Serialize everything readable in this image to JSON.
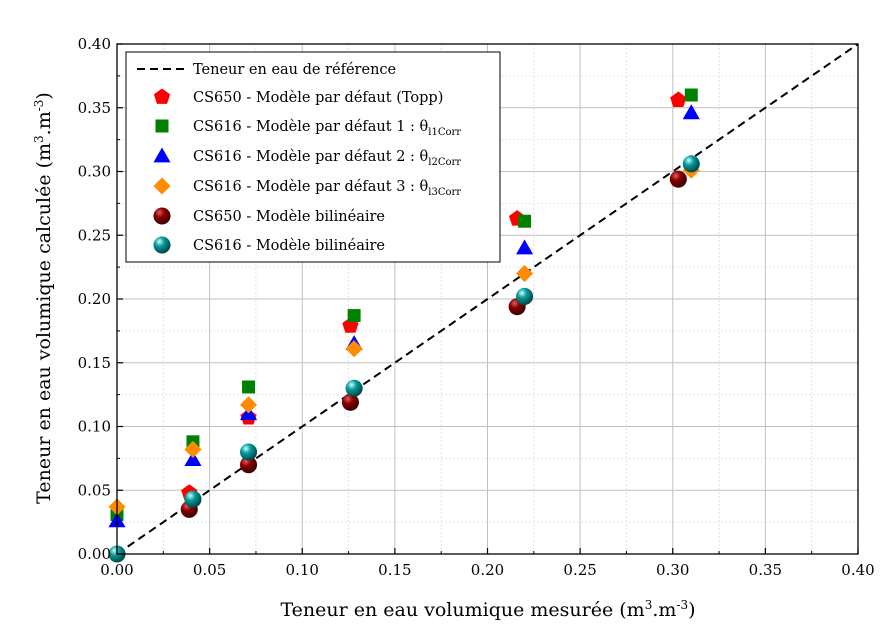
{
  "chart_data": {
    "type": "scatter",
    "title": "",
    "xlabel": "Teneur en eau volumique mesurée (m³.m⁻³)",
    "ylabel": "Teneur en eau volumique calculée (m³.m⁻³)",
    "xlim": [
      0,
      0.4
    ],
    "ylim": [
      0,
      0.4
    ],
    "x_ticks": [
      "0.00",
      "0.05",
      "0.10",
      "0.15",
      "0.20",
      "0.25",
      "0.30",
      "0.35",
      "0.40"
    ],
    "y_ticks": [
      "0.00",
      "0.05",
      "0.10",
      "0.15",
      "0.20",
      "0.25",
      "0.30",
      "0.35",
      "0.40"
    ],
    "grid": true,
    "legend_position": "top-left",
    "reference_line": {
      "name": "Teneur en eau de référence",
      "points": [
        [
          0,
          0
        ],
        [
          0.4,
          0.4
        ]
      ],
      "color": "#000000",
      "style": "dashed"
    },
    "series": [
      {
        "name": "CS650 - Modèle par défaut (Topp)",
        "marker": "pentagon",
        "color": "#ff0000",
        "points": [
          [
            0.039,
            0.048
          ],
          [
            0.071,
            0.107
          ],
          [
            0.126,
            0.179
          ],
          [
            0.216,
            0.263
          ],
          [
            0.303,
            0.356
          ]
        ]
      },
      {
        "name": "CS616 - Modèle par défaut 1 : θl1Corr",
        "marker": "square",
        "color": "#008000",
        "points": [
          [
            0.0,
            0.031
          ],
          [
            0.041,
            0.088
          ],
          [
            0.071,
            0.131
          ],
          [
            0.128,
            0.187
          ],
          [
            0.22,
            0.261
          ],
          [
            0.31,
            0.36
          ]
        ]
      },
      {
        "name": "CS616 - Modèle par défaut 2 : θl2Corr",
        "marker": "triangle",
        "color": "#0000ff",
        "points": [
          [
            0.0,
            0.026
          ],
          [
            0.041,
            0.074
          ],
          [
            0.071,
            0.11
          ],
          [
            0.128,
            0.165
          ],
          [
            0.22,
            0.24
          ],
          [
            0.31,
            0.346
          ]
        ]
      },
      {
        "name": "CS616 - Modèle par défaut 3 : θl3Corr",
        "marker": "diamond",
        "color": "#ff8c00",
        "points": [
          [
            0.0,
            0.037
          ],
          [
            0.041,
            0.082
          ],
          [
            0.071,
            0.117
          ],
          [
            0.128,
            0.161
          ],
          [
            0.22,
            0.22
          ],
          [
            0.31,
            0.301
          ]
        ]
      },
      {
        "name": "CS650 - Modèle bilinéaire",
        "marker": "sphere",
        "color": "#8b0000",
        "points": [
          [
            0.039,
            0.035
          ],
          [
            0.071,
            0.07
          ],
          [
            0.126,
            0.119
          ],
          [
            0.216,
            0.194
          ],
          [
            0.303,
            0.294
          ]
        ]
      },
      {
        "name": "CS616 - Modèle bilinéaire",
        "marker": "sphere",
        "color": "#008b8b",
        "points": [
          [
            0.0,
            0.0
          ],
          [
            0.041,
            0.043
          ],
          [
            0.071,
            0.08
          ],
          [
            0.128,
            0.13
          ],
          [
            0.22,
            0.202
          ],
          [
            0.31,
            0.306
          ]
        ]
      }
    ]
  },
  "labels": {
    "xlabel_main": "Teneur en eau volumique mesurée (m",
    "ylabel_main": "Teneur en eau volumique calculée (m",
    "unit_sup": "3",
    "unit_mid": ".m",
    "unit_sup_neg": "-3",
    "unit_close": ")"
  },
  "legend": {
    "items": [
      {
        "main": "Teneur en eau de référence",
        "sub": ""
      },
      {
        "main": "CS650 - Modèle par défaut (Topp)",
        "sub": ""
      },
      {
        "main": "CS616 - Modèle par défaut 1 : θ",
        "sub": "l1Corr"
      },
      {
        "main": "CS616 - Modèle par défaut 2 : θ",
        "sub": "l2Corr"
      },
      {
        "main": "CS616 - Modèle par défaut 3 : θ",
        "sub": "l3Corr"
      },
      {
        "main": "CS650 - Modèle bilinéaire",
        "sub": ""
      },
      {
        "main": "CS616 - Modèle bilinéaire",
        "sub": ""
      }
    ]
  }
}
